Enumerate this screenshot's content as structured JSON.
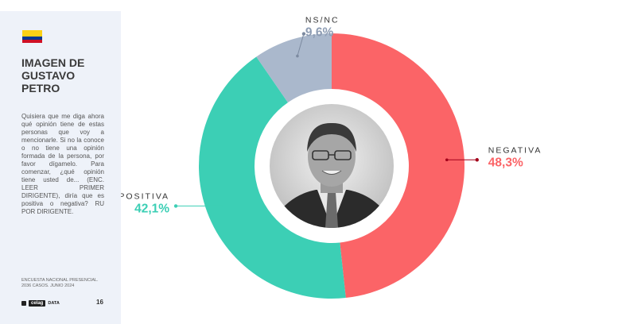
{
  "sidebar": {
    "title_lines": [
      "IMAGEN DE",
      "GUSTAVO",
      "PETRO"
    ],
    "question": "Quisiera que me diga ahora qué opinión tiene de estas personas que voy a mencionarle. Si no la conoce o no tiene una opinión formada de la persona, por favor dígamelo. Para comenzar, ¿qué opinión tiene usted de... (ENC. LEER PRIMER DIRIGENTE), diría que es positiva o negativa? RU POR DIRIGENTE.",
    "footnote_lines": [
      "ENCUESTA NACIONAL PRESENCIAL.",
      "2036 CASOS. JUNIO 2024"
    ],
    "logo_text": "celag",
    "logo_suffix": "DATA",
    "page_number": "16"
  },
  "colors": {
    "positiva": "#3ccfb5",
    "negativa": "#fb6467",
    "nsnc": "#aab8cc",
    "negativa_dark": "#a3001a",
    "title": "#3a3a3a"
  },
  "chart_data": {
    "type": "pie",
    "style": "donut",
    "start": "top",
    "direction": "clockwise",
    "slices": [
      {
        "key": "negativa",
        "name": "NEGATIVA",
        "label": "48,3%",
        "value": 48.3
      },
      {
        "key": "positiva",
        "name": "POSITIVA",
        "label": "42,1%",
        "value": 42.1
      },
      {
        "key": "nsnc",
        "name": "NS/NC",
        "label": "9,6%",
        "value": 9.6
      }
    ],
    "center_image": "portrait"
  }
}
